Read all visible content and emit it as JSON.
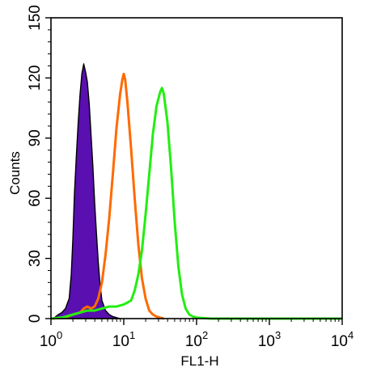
{
  "chart_data": {
    "type": "area",
    "x_scale": "log",
    "x_range": [
      1,
      10000
    ],
    "y_range": [
      0,
      150
    ],
    "xlabel": "FL1-H",
    "ylabel": "Counts",
    "y_ticks": [
      {
        "value": 0,
        "label": "0"
      },
      {
        "value": 30,
        "label": "30"
      },
      {
        "value": 60,
        "label": "60"
      },
      {
        "value": 90,
        "label": "90"
      },
      {
        "value": 120,
        "label": "120"
      },
      {
        "value": 150,
        "label": "150"
      }
    ],
    "x_ticks": [
      {
        "value": 1,
        "base": "10",
        "exp": "0"
      },
      {
        "value": 10,
        "base": "10",
        "exp": "1"
      },
      {
        "value": 100,
        "base": "10",
        "exp": "2"
      },
      {
        "value": 1000,
        "base": "10",
        "exp": "3"
      },
      {
        "value": 10000,
        "base": "10",
        "exp": "4"
      }
    ],
    "grid": false,
    "legend": "none",
    "series": [
      {
        "style": "filled",
        "color": "#5a0fb0",
        "points": [
          [
            1.0,
            0
          ],
          [
            1.12,
            0.5
          ],
          [
            1.26,
            2
          ],
          [
            1.41,
            3
          ],
          [
            1.58,
            5
          ],
          [
            1.78,
            10
          ],
          [
            1.9,
            22
          ],
          [
            2.0,
            40
          ],
          [
            2.1,
            62
          ],
          [
            2.24,
            82
          ],
          [
            2.37,
            98
          ],
          [
            2.51,
            112
          ],
          [
            2.66,
            122
          ],
          [
            2.82,
            127
          ],
          [
            2.99,
            123
          ],
          [
            3.16,
            118
          ],
          [
            3.35,
            107
          ],
          [
            3.55,
            92
          ],
          [
            3.76,
            76
          ],
          [
            3.98,
            58
          ],
          [
            4.22,
            42
          ],
          [
            4.47,
            28
          ],
          [
            4.73,
            17
          ],
          [
            5.01,
            9
          ],
          [
            5.62,
            4
          ],
          [
            6.31,
            2
          ],
          [
            7.08,
            1
          ],
          [
            7.94,
            0.5
          ],
          [
            8.91,
            0
          ]
        ]
      },
      {
        "style": "outline",
        "color": "#ff6a00",
        "points": [
          [
            1.0,
            0
          ],
          [
            1.58,
            0.5
          ],
          [
            2.0,
            2
          ],
          [
            2.51,
            3
          ],
          [
            2.82,
            5
          ],
          [
            3.16,
            6
          ],
          [
            3.55,
            5
          ],
          [
            3.98,
            6
          ],
          [
            4.47,
            10
          ],
          [
            5.01,
            18
          ],
          [
            5.62,
            32
          ],
          [
            6.31,
            50
          ],
          [
            7.08,
            72
          ],
          [
            7.94,
            95
          ],
          [
            8.91,
            112
          ],
          [
            9.55,
            119
          ],
          [
            10.0,
            122
          ],
          [
            10.47,
            119
          ],
          [
            11.22,
            108
          ],
          [
            12.59,
            85
          ],
          [
            14.13,
            60
          ],
          [
            15.85,
            37
          ],
          [
            17.78,
            20
          ],
          [
            19.95,
            10
          ],
          [
            22.39,
            4
          ],
          [
            25.12,
            2
          ],
          [
            28.18,
            1
          ],
          [
            31.62,
            0.5
          ],
          [
            35.48,
            0
          ]
        ]
      },
      {
        "style": "outline",
        "color": "#22ee11",
        "points": [
          [
            1.0,
            0
          ],
          [
            1.41,
            0.5
          ],
          [
            2.0,
            2
          ],
          [
            2.51,
            3
          ],
          [
            3.16,
            4
          ],
          [
            3.98,
            4
          ],
          [
            5.01,
            5
          ],
          [
            6.31,
            6
          ],
          [
            7.94,
            6
          ],
          [
            10.0,
            7
          ],
          [
            12.59,
            9
          ],
          [
            14.13,
            14
          ],
          [
            15.85,
            22
          ],
          [
            17.78,
            34
          ],
          [
            19.95,
            52
          ],
          [
            22.39,
            72
          ],
          [
            25.12,
            92
          ],
          [
            28.18,
            106
          ],
          [
            31.62,
            113
          ],
          [
            33.5,
            115
          ],
          [
            35.48,
            112
          ],
          [
            39.81,
            98
          ],
          [
            44.67,
            75
          ],
          [
            50.12,
            48
          ],
          [
            56.23,
            26
          ],
          [
            63.1,
            12
          ],
          [
            70.79,
            5
          ],
          [
            79.43,
            2
          ],
          [
            89.13,
            1
          ],
          [
            100.0,
            0.5
          ],
          [
            158.49,
            0
          ],
          [
            10000,
            0
          ]
        ]
      }
    ]
  }
}
